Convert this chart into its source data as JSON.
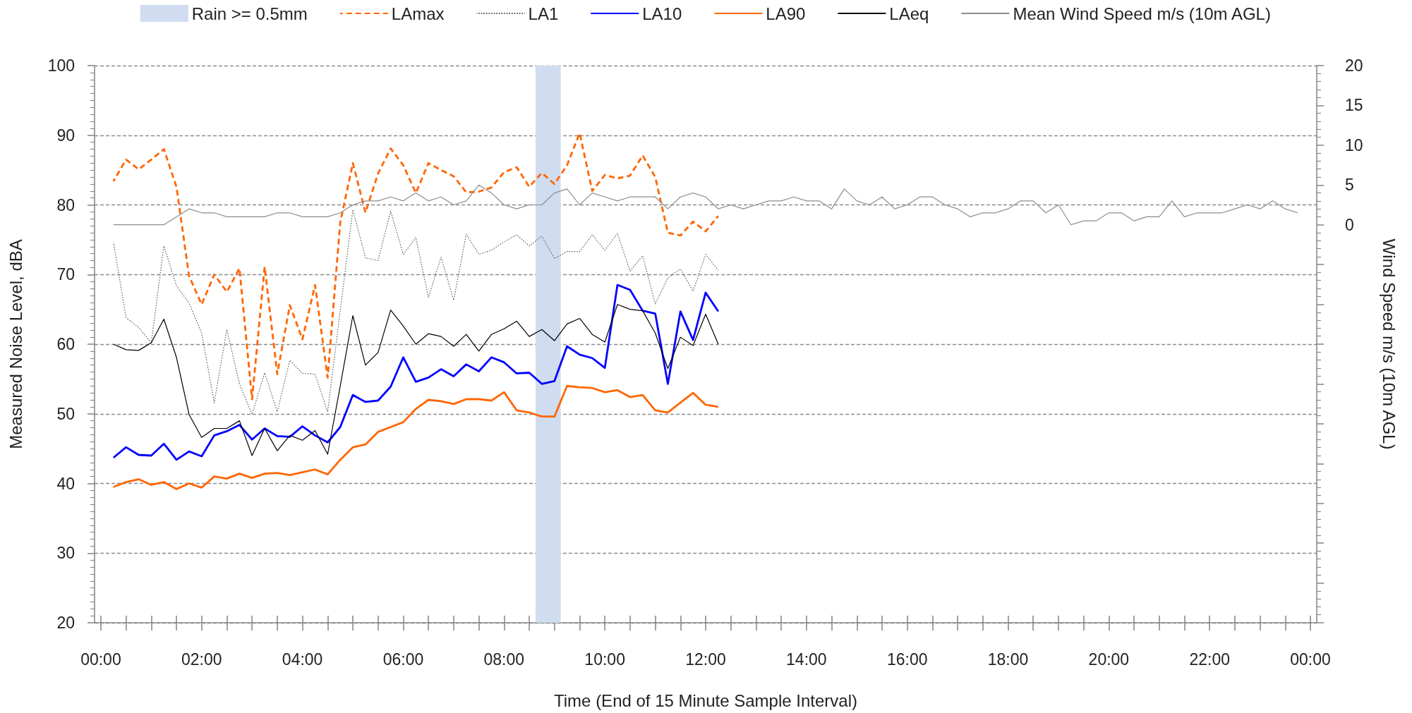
{
  "chart_data": {
    "type": "line",
    "xlabel": "Time (End of 15 Minute Sample Interval)",
    "ylabel": "Measured Noise Level, dBA",
    "y2label": "Wind Speed m/s (10m AGL)",
    "x": [
      0.25,
      0.5,
      0.75,
      1,
      1.25,
      1.5,
      1.75,
      2,
      2.25,
      2.5,
      2.75,
      3,
      3.25,
      3.5,
      3.75,
      4,
      4.25,
      4.5,
      4.75,
      5,
      5.25,
      5.5,
      5.75,
      6,
      6.25,
      6.5,
      6.75,
      7,
      7.25,
      7.5,
      7.75,
      8,
      8.25,
      8.5,
      8.75,
      9,
      9.25,
      9.5,
      9.75,
      10,
      10.25,
      10.5,
      10.75,
      11,
      11.25,
      11.5,
      11.75,
      12,
      12.25
    ],
    "series": [
      {
        "name": "LAmax",
        "color": "#ff6600",
        "line_style": "dashed",
        "values": [
          83.4,
          86.5,
          85.1,
          86.5,
          88.0,
          82.6,
          69.8,
          65.7,
          70.0,
          67.5,
          70.9,
          52.1,
          71.1,
          55.7,
          65.6,
          60.7,
          68.5,
          55.2,
          77.5,
          86.0,
          78.9,
          84.5,
          88.1,
          85.7,
          81.7,
          86.0,
          85.0,
          84.1,
          81.8,
          81.9,
          82.5,
          84.7,
          85.4,
          82.6,
          84.6,
          83.0,
          85.7,
          90.3,
          82.0,
          84.3,
          83.8,
          84.2,
          87.1,
          84.0,
          76.0,
          75.6,
          77.6,
          76.2,
          78.4
        ]
      },
      {
        "name": "LA1",
        "color": "#555555",
        "line_style": "dotted",
        "values": [
          74.6,
          63.8,
          62.4,
          60.2,
          74.1,
          68.4,
          65.9,
          61.6,
          51.6,
          62.1,
          54.3,
          49.9,
          55.9,
          50.3,
          57.7,
          55.8,
          55.7,
          50.3,
          64.8,
          79.3,
          72.4,
          72.0,
          79.1,
          72.9,
          75.3,
          66.7,
          72.5,
          66.3,
          75.8,
          72.9,
          73.5,
          74.7,
          75.7,
          74.1,
          75.5,
          72.3,
          73.3,
          73.3,
          75.7,
          73.5,
          75.9,
          70.5,
          72.7,
          65.8,
          69.5,
          70.8,
          67.6,
          72.9,
          70.6
        ]
      },
      {
        "name": "LA10",
        "color": "#0000ff",
        "values": [
          43.7,
          45.2,
          44.1,
          44.0,
          45.7,
          43.4,
          44.6,
          43.9,
          46.9,
          47.5,
          48.4,
          46.3,
          47.9,
          46.8,
          46.7,
          48.2,
          46.9,
          45.9,
          48.1,
          52.7,
          51.7,
          51.9,
          53.9,
          58.1,
          54.6,
          55.2,
          56.4,
          55.4,
          57.1,
          56.1,
          58.1,
          57.4,
          55.8,
          55.9,
          54.3,
          54.7,
          59.7,
          58.5,
          58.0,
          56.6,
          68.5,
          67.8,
          64.8,
          64.4,
          54.3,
          64.7,
          60.6,
          67.4,
          64.7
        ]
      },
      {
        "name": "LA90",
        "color": "#ff6600",
        "values": [
          39.5,
          40.2,
          40.6,
          39.8,
          40.2,
          39.2,
          40.0,
          39.4,
          41.0,
          40.7,
          41.4,
          40.8,
          41.4,
          41.5,
          41.2,
          41.6,
          42.0,
          41.3,
          43.4,
          45.2,
          45.6,
          47.4,
          48.1,
          48.8,
          50.7,
          52.0,
          51.8,
          51.4,
          52.1,
          52.1,
          51.9,
          53.1,
          50.5,
          50.2,
          49.6,
          49.6,
          54.0,
          53.8,
          53.7,
          53.1,
          53.4,
          52.4,
          52.7,
          50.5,
          50.2,
          51.6,
          53.0,
          51.3,
          51.0
        ]
      },
      {
        "name": "LAeq",
        "color": "#000000",
        "values": [
          60.0,
          59.2,
          59.1,
          60.2,
          63.6,
          58.1,
          49.9,
          46.6,
          47.9,
          47.9,
          49.0,
          44.0,
          47.9,
          44.7,
          46.9,
          46.2,
          47.6,
          44.2,
          54.0,
          64.1,
          57.0,
          58.8,
          64.9,
          62.6,
          60.0,
          61.5,
          61.1,
          59.7,
          61.4,
          59.0,
          61.4,
          62.2,
          63.3,
          61.1,
          62.1,
          60.5,
          62.9,
          63.7,
          61.4,
          60.3,
          65.7,
          65.0,
          64.8,
          61.6,
          56.5,
          61.0,
          59.8,
          64.3,
          60.0
        ]
      },
      {
        "name": "Mean Wind Speed m/s (10m AGL)",
        "color": "#8c8c8c",
        "axis": "y2",
        "x": [
          0.25,
          0.5,
          0.75,
          1,
          1.25,
          1.5,
          1.75,
          2,
          2.25,
          2.5,
          2.75,
          3,
          3.25,
          3.5,
          3.75,
          4,
          4.25,
          4.5,
          4.75,
          5,
          5.25,
          5.5,
          5.75,
          6,
          6.25,
          6.5,
          6.75,
          7,
          7.25,
          7.5,
          7.75,
          8,
          8.25,
          8.5,
          8.75,
          9,
          9.25,
          9.5,
          9.75,
          10,
          10.25,
          10.5,
          10.75,
          11,
          11.25,
          11.5,
          11.75,
          12,
          12.25,
          12.5,
          12.75,
          13,
          13.25,
          13.5,
          13.75,
          14,
          14.25,
          14.5,
          14.75,
          15,
          15.25,
          15.5,
          15.75,
          16,
          16.25,
          16.5,
          16.75,
          17,
          17.25,
          17.5,
          17.75,
          18,
          18.25,
          18.5,
          18.75,
          19,
          19.25,
          19.5,
          19.75,
          20,
          20.25,
          20.5,
          20.75,
          21,
          21.25,
          21.5,
          21.75,
          22,
          22.25,
          22.5,
          22.75,
          23,
          23.25,
          23.5,
          23.75
        ],
        "values": [
          0,
          0,
          0,
          0,
          0,
          1.0,
          2.0,
          1.5,
          1.5,
          1.0,
          1.0,
          1.0,
          1.0,
          1.5,
          1.5,
          1.0,
          1.0,
          1.0,
          1.5,
          2.5,
          3.0,
          3.0,
          3.5,
          3.0,
          4.0,
          3.0,
          3.5,
          2.5,
          3.0,
          5.0,
          4.0,
          2.5,
          2.0,
          2.5,
          2.5,
          4.0,
          4.5,
          2.5,
          4.0,
          3.5,
          3.0,
          3.5,
          3.5,
          3.5,
          2.0,
          3.5,
          4.0,
          3.5,
          2.0,
          2.5,
          2.0,
          2.5,
          3.0,
          3.0,
          3.5,
          3.0,
          3.0,
          2.0,
          4.5,
          3.0,
          2.5,
          3.5,
          2.0,
          2.5,
          3.5,
          3.5,
          2.5,
          2.0,
          1.0,
          1.5,
          1.5,
          2.0,
          3.0,
          3.0,
          1.5,
          2.5,
          0.0,
          0.5,
          0.5,
          1.5,
          1.5,
          0.5,
          1.0,
          1.0,
          3.0,
          1.0,
          1.5,
          1.5,
          1.5,
          2.0,
          2.5,
          2.0,
          3.0,
          2.0,
          1.5
        ]
      }
    ],
    "bands": [
      {
        "axis": "x",
        "from": 8.625,
        "to": 9.125,
        "label": "Rain >= 0.5mm",
        "color": "#d0dcef"
      }
    ],
    "xlim": [
      -0.125,
      24.125
    ],
    "xticks": [
      {
        "value": 0,
        "label": "00:00"
      },
      {
        "value": 2,
        "label": "02:00"
      },
      {
        "value": 4,
        "label": "04:00"
      },
      {
        "value": 6,
        "label": "06:00"
      },
      {
        "value": 8,
        "label": "08:00"
      },
      {
        "value": 10,
        "label": "10:00"
      },
      {
        "value": 12,
        "label": "12:00"
      },
      {
        "value": 14,
        "label": "14:00"
      },
      {
        "value": 16,
        "label": "16:00"
      },
      {
        "value": 18,
        "label": "18:00"
      },
      {
        "value": 20,
        "label": "20:00"
      },
      {
        "value": 22,
        "label": "22:00"
      },
      {
        "value": 24,
        "label": "00:00"
      },
      {
        "value": 0.5,
        "label": null
      },
      {
        "value": 1,
        "label": null
      },
      {
        "value": 1.5,
        "label": null
      },
      {
        "value": 2.5,
        "label": null
      },
      {
        "value": 3,
        "label": null
      },
      {
        "value": 3.5,
        "label": null
      },
      {
        "value": 4.5,
        "label": null
      },
      {
        "value": 5,
        "label": null
      },
      {
        "value": 5.5,
        "label": null
      },
      {
        "value": 6.5,
        "label": null
      },
      {
        "value": 7,
        "label": null
      },
      {
        "value": 7.5,
        "label": null
      },
      {
        "value": 8.5,
        "label": null
      },
      {
        "value": 9,
        "label": null
      },
      {
        "value": 9.5,
        "label": null
      },
      {
        "value": 10.5,
        "label": null
      },
      {
        "value": 11,
        "label": null
      },
      {
        "value": 11.5,
        "label": null
      },
      {
        "value": 12.5,
        "label": null
      },
      {
        "value": 13,
        "label": null
      },
      {
        "value": 13.5,
        "label": null
      },
      {
        "value": 14.5,
        "label": null
      },
      {
        "value": 15,
        "label": null
      },
      {
        "value": 15.5,
        "label": null
      },
      {
        "value": 16.5,
        "label": null
      },
      {
        "value": 17,
        "label": null
      },
      {
        "value": 17.5,
        "label": null
      },
      {
        "value": 18.5,
        "label": null
      },
      {
        "value": 19,
        "label": null
      },
      {
        "value": 19.5,
        "label": null
      },
      {
        "value": 20.5,
        "label": null
      },
      {
        "value": 21,
        "label": null
      },
      {
        "value": 21.5,
        "label": null
      },
      {
        "value": 22.5,
        "label": null
      },
      {
        "value": 23,
        "label": null
      },
      {
        "value": 23.5,
        "label": null
      }
    ],
    "ylim": [
      20,
      100
    ],
    "yticks": [
      20,
      30,
      40,
      50,
      60,
      70,
      80,
      90,
      100
    ],
    "y2lim": [
      -50,
      20
    ],
    "y2ticks": [
      {
        "value": -50,
        "label": null
      },
      {
        "value": -45,
        "label": null
      },
      {
        "value": -40,
        "label": null
      },
      {
        "value": -35,
        "label": null
      },
      {
        "value": -30,
        "label": null
      },
      {
        "value": -25,
        "label": null
      },
      {
        "value": -20,
        "label": null
      },
      {
        "value": -15,
        "label": null
      },
      {
        "value": -10,
        "label": null
      },
      {
        "value": -5,
        "label": null
      },
      0,
      5,
      10,
      15,
      20
    ],
    "grid": "y",
    "legend": "top",
    "marker": "none"
  }
}
